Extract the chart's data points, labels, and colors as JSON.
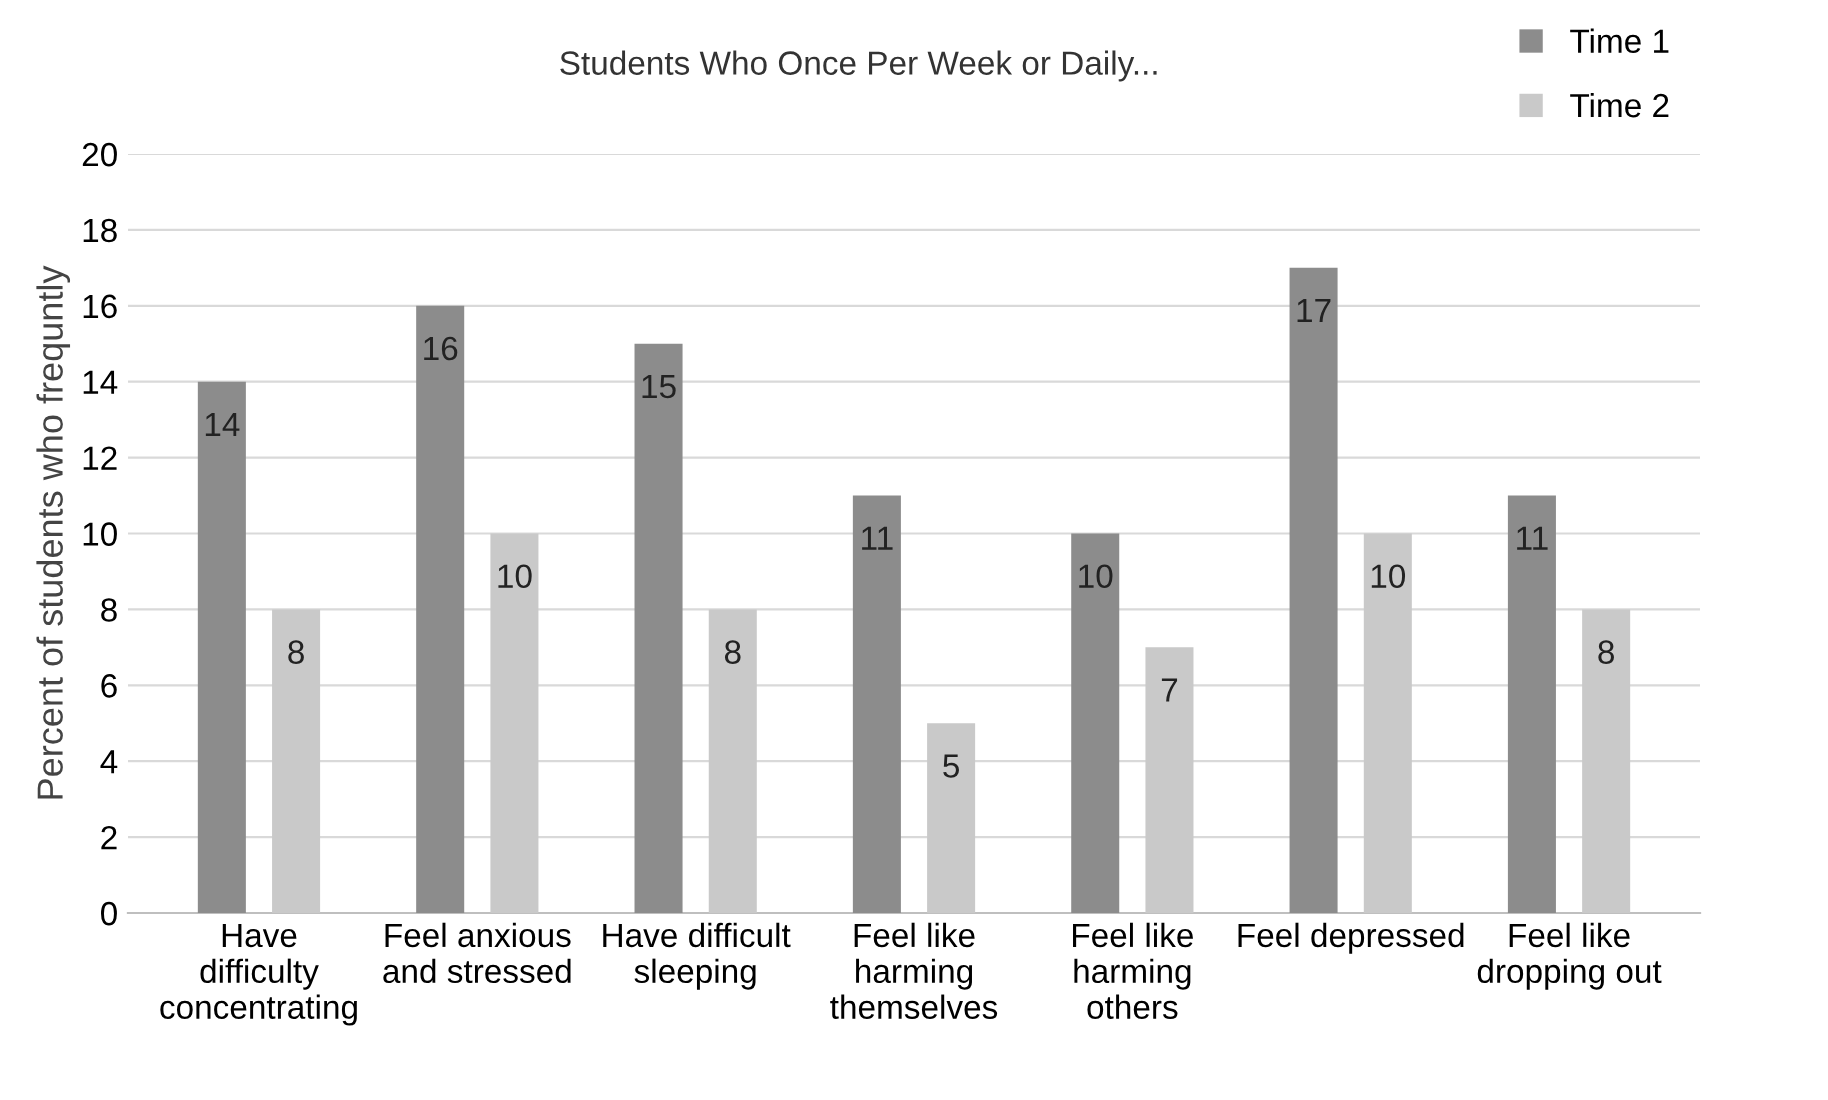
{
  "chart_data": {
    "type": "bar",
    "title": "Students Who Once Per Week or Daily...",
    "ylabel": "Percent of students who frequntly",
    "categories": [
      "Have\ndifficulty\nconcentrating",
      "Feel anxious\nand stressed",
      "Have difficult\nsleeping",
      "Feel like\nharming\nthemselves",
      "Feel like\nharming\nothers",
      "Feel depressed",
      "Feel like\ndropping out"
    ],
    "series": [
      {
        "name": "Time 1",
        "color": "#8c8c8c",
        "values": [
          14,
          16,
          15,
          11,
          10,
          17,
          11
        ]
      },
      {
        "name": "Time 2",
        "color": "#c9c9c9",
        "values": [
          8,
          10,
          8,
          5,
          7,
          10,
          8
        ]
      }
    ],
    "ylim": [
      0,
      20
    ],
    "yticks": [
      0,
      2,
      4,
      6,
      8,
      10,
      12,
      14,
      16,
      18,
      20
    ],
    "grid": "y",
    "legend": "top right",
    "data_labels": true
  }
}
